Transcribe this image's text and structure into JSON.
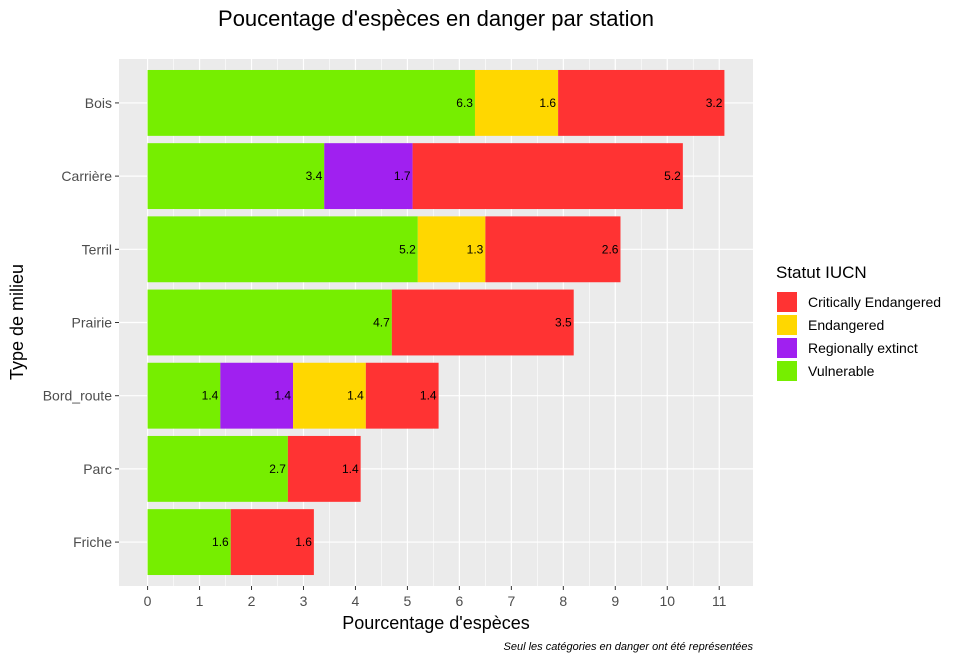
{
  "chart_data": {
    "type": "bar",
    "orientation": "horizontal",
    "stacked": true,
    "title": "Poucentage d'espèces en danger par station",
    "xlabel": "Pourcentage d'espèces",
    "ylabel": "Type de milieu",
    "caption": "Seul les catégories en danger ont été représentées",
    "xlim": [
      -0.55,
      11.65
    ],
    "xticks": [
      0,
      1,
      2,
      3,
      4,
      5,
      6,
      7,
      8,
      9,
      10,
      11
    ],
    "grid": true,
    "legend_position": "right",
    "legend_title": "Statut IUCN",
    "legend": [
      {
        "name": "Critically Endangered",
        "color": "#FF3333"
      },
      {
        "name": "Endangered",
        "color": "#FFD700"
      },
      {
        "name": "Regionally extinct",
        "color": "#A020F0"
      },
      {
        "name": "Vulnerable",
        "color": "#76EE00"
      }
    ],
    "categories": [
      "Bois",
      "Carrière",
      "Terril",
      "Prairie",
      "Bord_route",
      "Parc",
      "Friche"
    ],
    "stack_order": [
      "Vulnerable",
      "Regionally extinct",
      "Endangered",
      "Critically Endangered"
    ],
    "series": [
      {
        "name": "Vulnerable",
        "color": "#76EE00",
        "values": [
          6.3,
          3.4,
          5.2,
          4.7,
          1.4,
          2.7,
          1.6
        ]
      },
      {
        "name": "Regionally extinct",
        "color": "#A020F0",
        "values": [
          null,
          1.7,
          null,
          null,
          1.4,
          null,
          null
        ]
      },
      {
        "name": "Endangered",
        "color": "#FFD700",
        "values": [
          1.6,
          null,
          1.3,
          null,
          1.4,
          null,
          null
        ]
      },
      {
        "name": "Critically Endangered",
        "color": "#FF3333",
        "values": [
          3.2,
          5.2,
          2.6,
          3.5,
          1.4,
          1.4,
          1.6
        ]
      }
    ]
  }
}
